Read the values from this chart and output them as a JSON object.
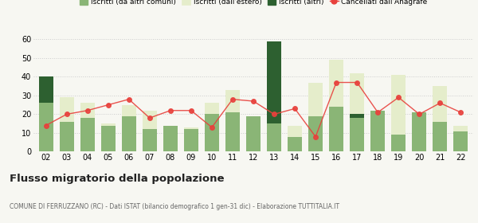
{
  "years": [
    "02",
    "03",
    "04",
    "05",
    "06",
    "07",
    "08",
    "09",
    "10",
    "11",
    "12",
    "13",
    "14",
    "15",
    "16",
    "17",
    "18",
    "19",
    "20",
    "21",
    "22"
  ],
  "iscritti_altri_comuni": [
    26,
    16,
    18,
    14,
    19,
    12,
    14,
    12,
    20,
    21,
    19,
    15,
    8,
    19,
    24,
    18,
    22,
    9,
    21,
    16,
    11
  ],
  "iscritti_estero": [
    0,
    13,
    8,
    1,
    6,
    10,
    0,
    1,
    6,
    12,
    0,
    0,
    6,
    18,
    25,
    24,
    0,
    32,
    0,
    19,
    3
  ],
  "iscritti_altri": [
    14,
    0,
    0,
    0,
    0,
    0,
    0,
    0,
    0,
    0,
    0,
    44,
    0,
    0,
    0,
    2,
    0,
    0,
    0,
    0,
    0
  ],
  "cancellati": [
    14,
    20,
    22,
    25,
    28,
    18,
    22,
    22,
    13,
    28,
    27,
    20,
    23,
    8,
    37,
    37,
    21,
    29,
    20,
    26,
    21
  ],
  "color_altri_comuni": "#8ab576",
  "color_estero": "#e5edcb",
  "color_altri": "#2d6030",
  "color_cancellati": "#e8413c",
  "color_line": "#f0a0a0",
  "ylim": [
    0,
    62
  ],
  "yticks": [
    0,
    10,
    20,
    30,
    40,
    50,
    60
  ],
  "title": "Flusso migratorio della popolazione",
  "subtitle": "COMUNE DI FERRUZZANO (RC) - Dati ISTAT (bilancio demografico 1 gen-31 dic) - Elaborazione TUTTITALIA.IT",
  "legend_labels": [
    "Iscritti (da altri comuni)",
    "Iscritti (dall'estero)",
    "Iscritti (altri)",
    "Cancellati dall'Anagrafe"
  ],
  "bg_color": "#f7f7f2"
}
